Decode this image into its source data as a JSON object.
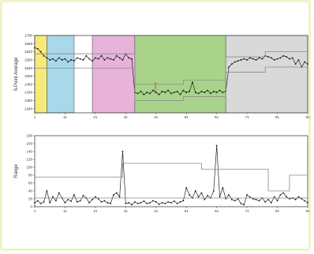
{
  "chart_data": [
    {
      "type": "line",
      "ylabel": "5-Point Average",
      "xlim": [
        1,
        91
      ],
      "ylim": [
        1320,
        1700
      ],
      "x_ticks": [
        1,
        11,
        21,
        31,
        41,
        51,
        61,
        71,
        81,
        91
      ],
      "y_ticks": [
        1340,
        1380,
        1420,
        1460,
        1500,
        1540,
        1580,
        1620,
        1660,
        1700
      ],
      "grid": false,
      "phases": [
        {
          "x_start": 1,
          "x_end": 5,
          "color": "#f5ea7a"
        },
        {
          "x_start": 5,
          "x_end": 14,
          "color": "#a8d8ea"
        },
        {
          "x_start": 20,
          "x_end": 34,
          "color": "#e7b3d9"
        },
        {
          "x_start": 34,
          "x_end": 64,
          "color": "#a9d38a"
        },
        {
          "x_start": 64,
          "x_end": 91,
          "color": "#d9d9d9"
        }
      ],
      "annotation": {
        "x": 41,
        "y": 1445,
        "text": "Rework"
      },
      "series": [
        {
          "values": [
            1640,
            1635,
            1620,
            1600,
            1590,
            1580,
            1585,
            1575,
            1590,
            1580,
            1585,
            1570,
            1580,
            1575,
            1590,
            1585,
            1580,
            1600,
            1585,
            1575,
            1590,
            1585,
            1600,
            1580,
            1590,
            1585,
            1580,
            1600,
            1590,
            1580,
            1610,
            1590,
            1585,
            1420,
            1415,
            1425,
            1410,
            1420,
            1415,
            1430,
            1420,
            1410,
            1425,
            1420,
            1430,
            1415,
            1420,
            1425,
            1410,
            1430,
            1420,
            1425,
            1470,
            1420,
            1415,
            1425,
            1420,
            1430,
            1415,
            1425,
            1420,
            1430,
            1420,
            1425,
            1545,
            1560,
            1570,
            1575,
            1580,
            1585,
            1580,
            1590,
            1585,
            1580,
            1590,
            1585,
            1600,
            1595,
            1590,
            1580,
            1585,
            1590,
            1600,
            1595,
            1585,
            1590,
            1560,
            1580,
            1545,
            1570,
            1560
          ]
        },
        {
          "type": "step",
          "values_x": [
            1,
            20,
            34,
            42,
            50,
            57,
            64,
            70,
            77,
            85,
            91
          ],
          "values": [
            1610,
            1610,
            1460,
            1460,
            1480,
            1480,
            1595,
            1595,
            1620,
            1620,
            1620
          ]
        },
        {
          "type": "step",
          "values_x": [
            1,
            20,
            34,
            42,
            50,
            57,
            64,
            70,
            77,
            85,
            91
          ],
          "values": [
            1540,
            1540,
            1380,
            1380,
            1400,
            1400,
            1520,
            1520,
            1545,
            1545,
            1545
          ]
        }
      ]
    },
    {
      "type": "line",
      "ylabel": "Range",
      "xlim": [
        1,
        91
      ],
      "ylim": [
        0,
        180
      ],
      "x_ticks": [
        1,
        11,
        21,
        31,
        41,
        51,
        61,
        71,
        81,
        91
      ],
      "y_ticks": [
        0,
        20,
        40,
        60,
        80,
        100,
        120,
        140,
        160,
        180
      ],
      "grid": false,
      "series": [
        {
          "values": [
            10,
            15,
            8,
            12,
            40,
            10,
            25,
            15,
            35,
            22,
            10,
            18,
            14,
            30,
            12,
            15,
            28,
            22,
            10,
            18,
            25,
            20,
            12,
            15,
            10,
            8,
            30,
            35,
            25,
            140,
            8,
            10,
            5,
            12,
            8,
            10,
            14,
            8,
            10,
            15,
            12,
            6,
            10,
            8,
            12,
            10,
            14,
            8,
            12,
            15,
            48,
            30,
            22,
            40,
            25,
            35,
            18,
            28,
            22,
            40,
            155,
            25,
            48,
            20,
            30,
            18,
            15,
            20,
            8,
            5,
            30,
            24,
            20,
            18,
            15,
            22,
            12,
            18,
            10,
            25,
            15,
            30,
            35,
            25,
            20,
            22,
            18,
            25,
            20,
            15,
            10
          ]
        },
        {
          "type": "step",
          "values_x": [
            1,
            30,
            49,
            56,
            63,
            78,
            85,
            91
          ],
          "values": [
            75,
            110,
            110,
            95,
            95,
            40,
            80,
            80
          ]
        },
        {
          "type": "step",
          "values_x": [
            1,
            91
          ],
          "values": [
            22,
            22
          ]
        }
      ]
    }
  ]
}
